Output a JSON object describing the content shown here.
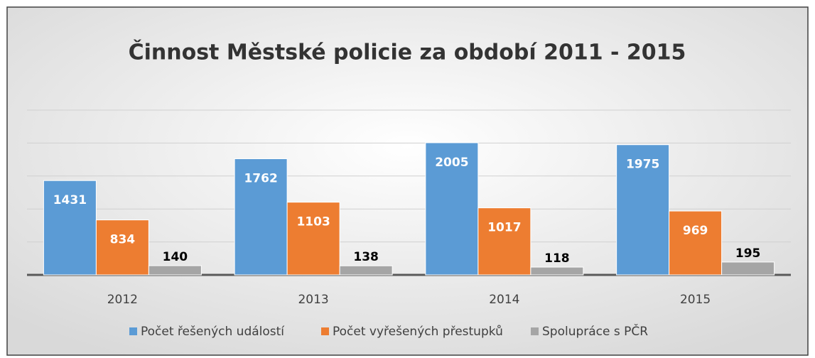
{
  "chart_data": {
    "type": "bar",
    "title": "Činnost Městské policie za období 2011 - 2015",
    "categories": [
      "2012",
      "2013",
      "2014",
      "2015"
    ],
    "series": [
      {
        "name": "Počet řešených událostí",
        "color": "#5b9bd5",
        "values": [
          1431,
          1762,
          2005,
          1975
        ]
      },
      {
        "name": "Počet vyřešených přestupků",
        "color": "#ed7d31",
        "values": [
          834,
          1103,
          1017,
          969
        ]
      },
      {
        "name": "Spolupráce s PČR",
        "color": "#a5a5a5",
        "values": [
          140,
          138,
          118,
          195
        ]
      }
    ],
    "ylim": [
      0,
      2500
    ],
    "yticks": [
      0,
      500,
      1000,
      1500,
      2000,
      2500
    ],
    "grid": true,
    "legend": "bottom"
  }
}
